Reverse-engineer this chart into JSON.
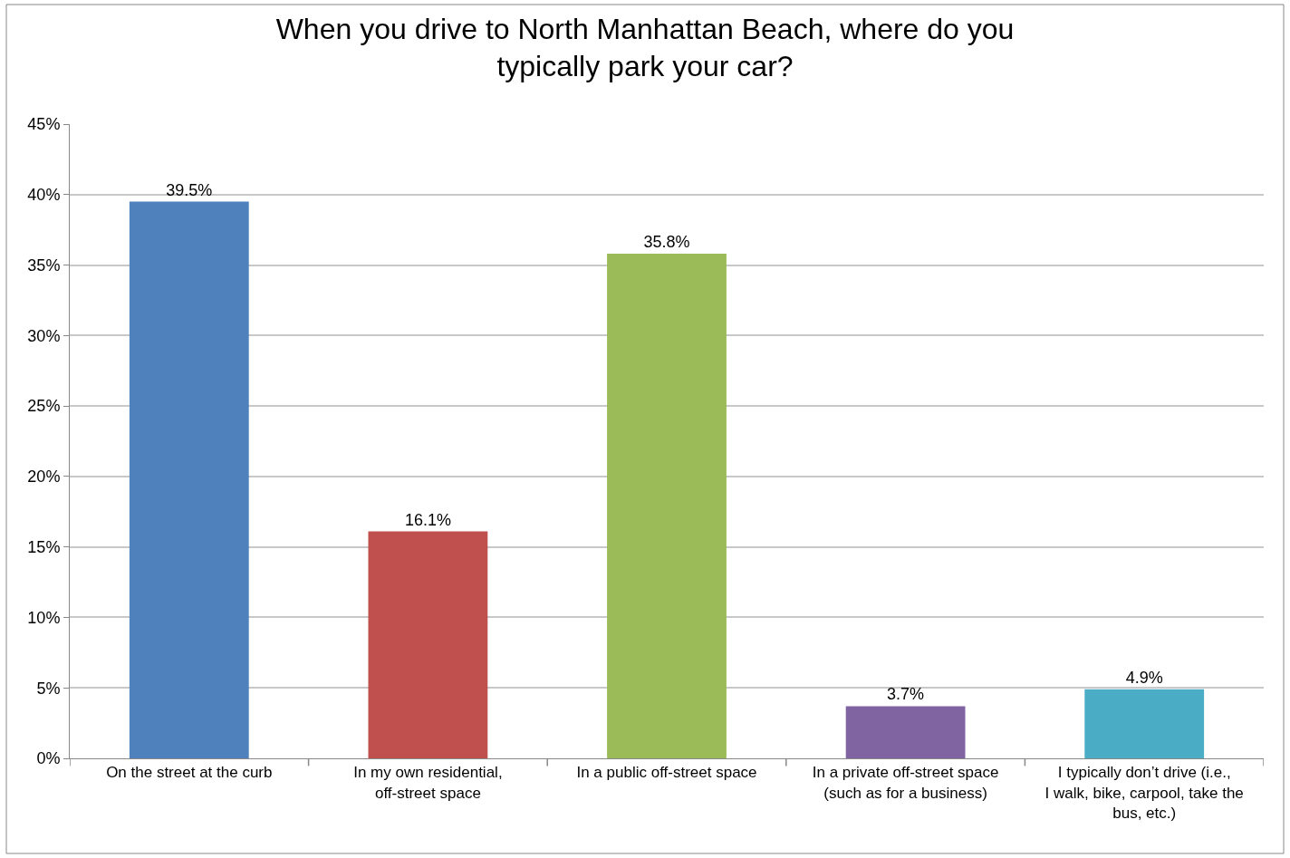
{
  "chart_data": {
    "type": "bar",
    "title": "When you drive to North Manhattan Beach, where do you typically park your car?",
    "categories": [
      "On the street at the curb",
      "In my own residential, off-street space",
      "In a public off-street space",
      "In a private off-street space (such as for a business)",
      "I typically don’t drive (i.e., I walk, bike, carpool, take the bus, etc.)"
    ],
    "values": [
      39.5,
      16.1,
      35.8,
      3.7,
      4.9
    ],
    "colors": [
      "#4f81bd",
      "#c0504d",
      "#9bbb59",
      "#8064a2",
      "#4bacc6"
    ],
    "value_labels": [
      "39.5%",
      "16.1%",
      "35.8%",
      "3.7%",
      "4.9%"
    ],
    "ylim": [
      0,
      45
    ],
    "yticks": [
      {
        "value": 0,
        "label": "0%"
      },
      {
        "value": 5,
        "label": "5%"
      },
      {
        "value": 10,
        "label": "10%"
      },
      {
        "value": 15,
        "label": "15%"
      },
      {
        "value": 20,
        "label": "20%"
      },
      {
        "value": 25,
        "label": "25%"
      },
      {
        "value": 30,
        "label": "30%"
      },
      {
        "value": 35,
        "label": "35%"
      },
      {
        "value": 40,
        "label": "40%"
      },
      {
        "value": 45,
        "label": "45%"
      }
    ],
    "grid": "y"
  }
}
